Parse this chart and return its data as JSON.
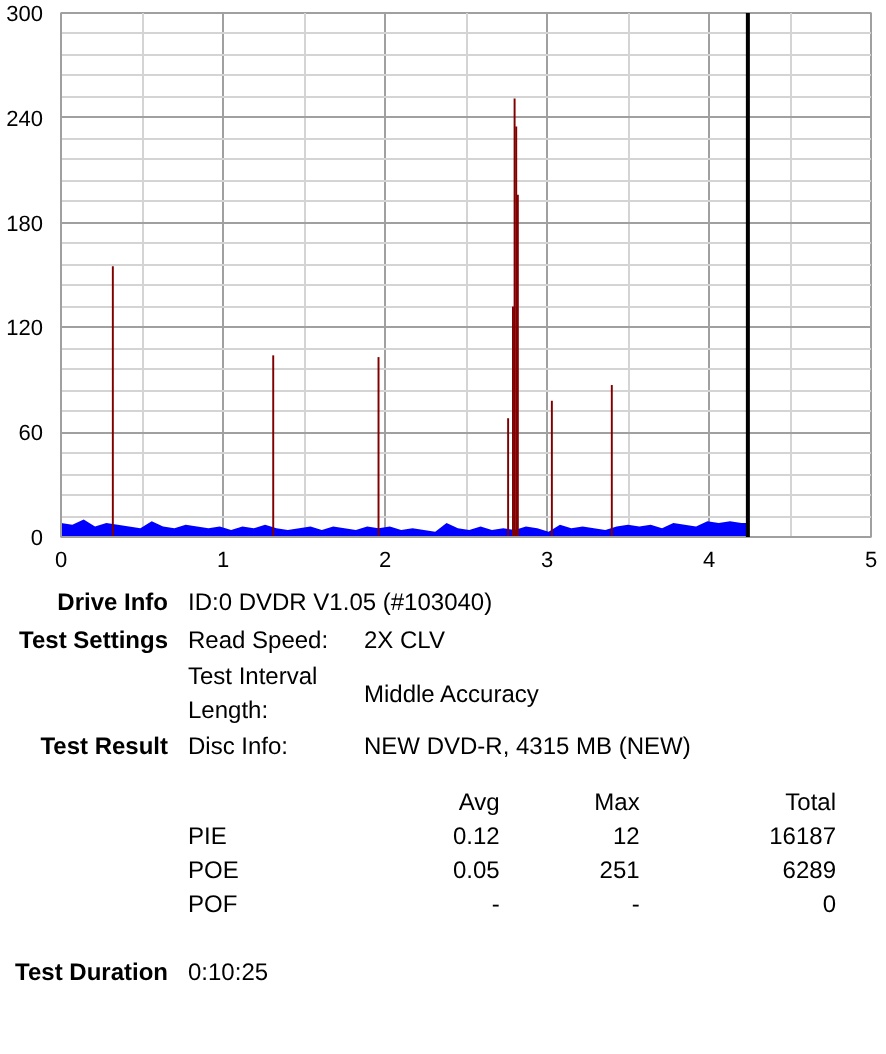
{
  "chart_data": [
    {
      "type": "bar",
      "xlim": [
        0,
        5
      ],
      "ylim": [
        0,
        300
      ],
      "xticks": [
        0,
        1,
        2,
        3,
        4,
        5
      ],
      "yticks": [
        0,
        60,
        120,
        180,
        240,
        300
      ],
      "grid": true,
      "series": [
        {
          "type": "area",
          "color": "#0000ff",
          "x": [
            0,
            0.07,
            0.14,
            0.21,
            0.28,
            0.35,
            0.42,
            0.49,
            0.56,
            0.63,
            0.7,
            0.77,
            0.84,
            0.91,
            0.98,
            1.05,
            1.12,
            1.19,
            1.26,
            1.33,
            1.4,
            1.47,
            1.54,
            1.61,
            1.68,
            1.75,
            1.82,
            1.89,
            1.96,
            2.03,
            2.1,
            2.17,
            2.24,
            2.31,
            2.38,
            2.45,
            2.52,
            2.59,
            2.66,
            2.73,
            2.8,
            2.87,
            2.94,
            3.01,
            3.08,
            3.15,
            3.22,
            3.29,
            3.36,
            3.43,
            3.5,
            3.57,
            3.64,
            3.71,
            3.78,
            3.85,
            3.92,
            3.99,
            4.06,
            4.13,
            4.2,
            4.24
          ],
          "values": [
            8,
            7,
            10,
            6,
            8,
            7,
            6,
            5,
            9,
            6,
            5,
            7,
            6,
            5,
            6,
            4,
            6,
            5,
            7,
            5,
            4,
            5,
            6,
            4,
            6,
            5,
            4,
            6,
            5,
            6,
            4,
            5,
            4,
            3,
            8,
            5,
            4,
            6,
            4,
            5,
            4,
            6,
            5,
            3,
            7,
            5,
            6,
            5,
            4,
            6,
            7,
            6,
            7,
            5,
            8,
            7,
            6,
            9,
            8,
            9,
            8,
            8
          ]
        },
        {
          "type": "bar",
          "color": "#800000",
          "x": [
            0.32,
            1.31,
            1.96,
            2.76,
            2.79,
            2.8,
            2.81,
            2.82,
            3.03,
            3.4
          ],
          "values": [
            155,
            104,
            103,
            68,
            132,
            251,
            235,
            196,
            78,
            87
          ]
        }
      ],
      "ref_lines": [
        {
          "axis": "x",
          "value": 4.24,
          "color": "#000000"
        }
      ]
    },
    {
      "type": "other",
      "annotations": [
        "Drive Info",
        "ID:0 DVDR V1.05 (#103040)",
        "Test Settings",
        "Read Speed:",
        "2X CLV",
        "Test Interval Length:",
        "Middle Accuracy",
        "Test Result",
        "Disc Info:",
        "NEW DVD-R, 4315 MB (NEW)",
        "Avg",
        "Max",
        "Total",
        "PIE",
        "0.12",
        "12",
        "16187",
        "POE",
        "0.05",
        "251",
        "6289",
        "POF",
        "-",
        "-",
        "0",
        "Test Duration",
        "0:10:25"
      ]
    }
  ]
}
